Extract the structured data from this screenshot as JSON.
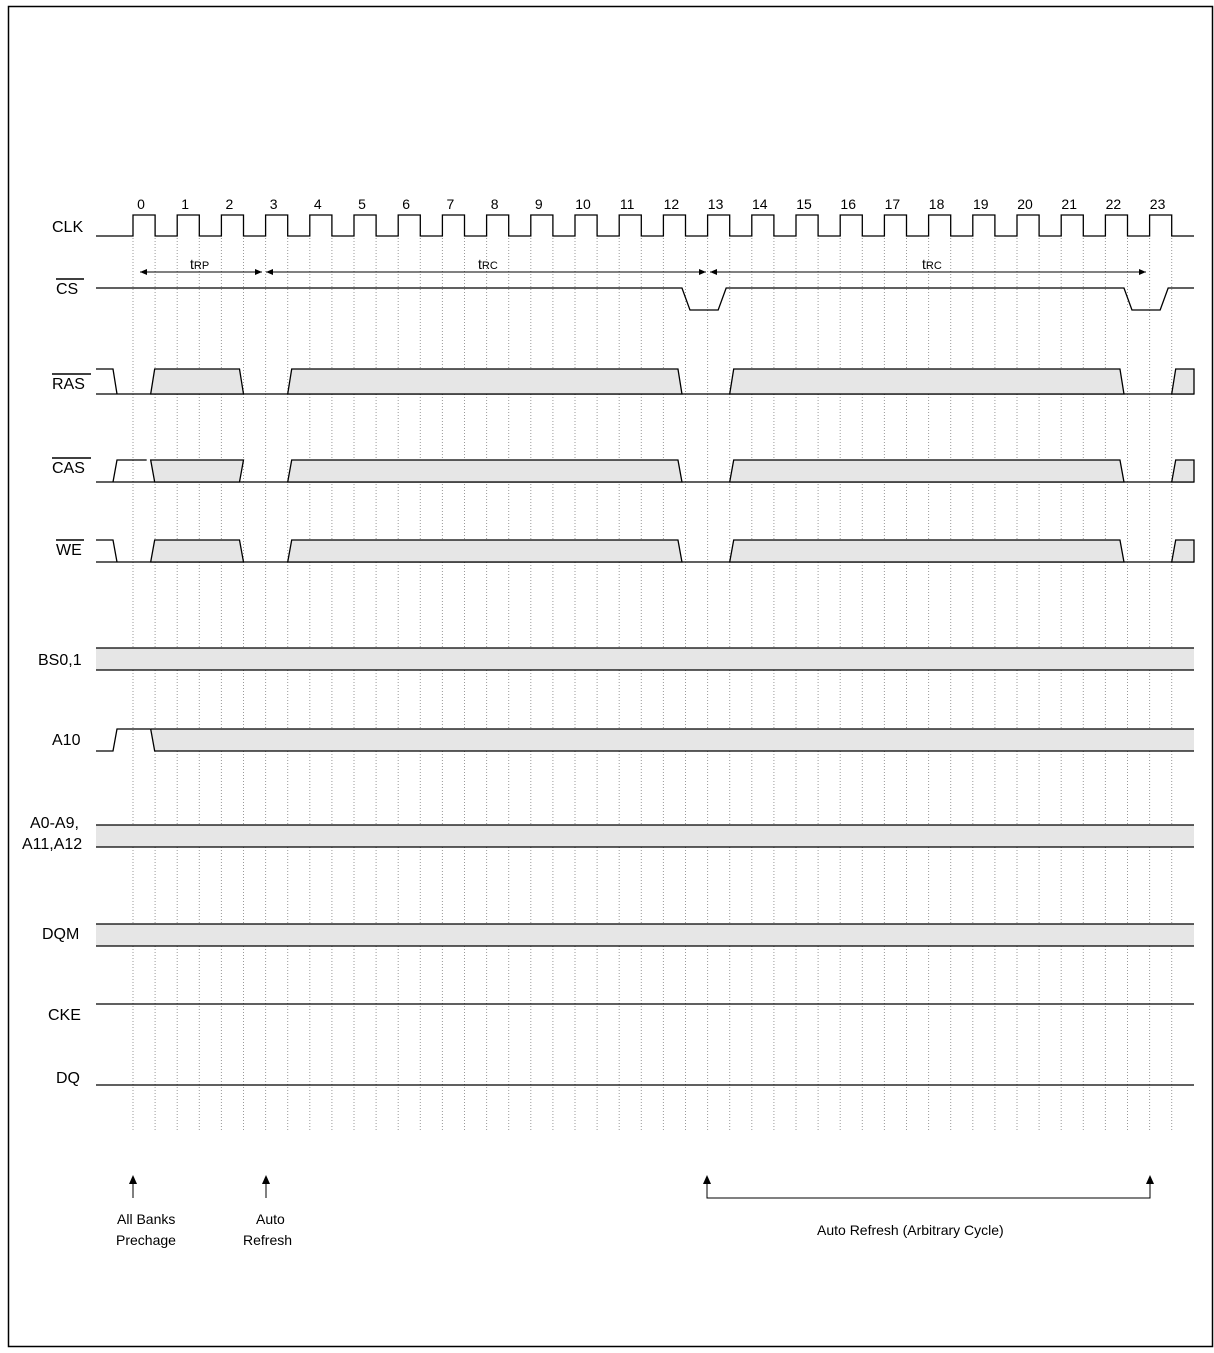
{
  "diagram": {
    "clock_labels": [
      "0",
      "1",
      "2",
      "3",
      "4",
      "5",
      "6",
      "7",
      "8",
      "9",
      "10",
      "11",
      "12",
      "13",
      "14",
      "15",
      "16",
      "17",
      "18",
      "19",
      "20",
      "21",
      "22",
      "23"
    ],
    "signals": {
      "clk": "CLK",
      "cs": "CS",
      "ras": "RAS",
      "cas": "CAS",
      "we": "WE",
      "bs": "BS0,1",
      "a10": "A10",
      "addr_line1": "A0-A9,",
      "addr_line2": "A11,A12",
      "dqm": "DQM",
      "cke": "CKE",
      "dq": "DQ"
    },
    "timing": {
      "trp_t": "t",
      "trp_sub": "RP",
      "trc1_t": "t",
      "trc1_sub": "RC",
      "trc2_t": "t",
      "trc2_sub": "RC"
    },
    "annotations": {
      "precharge_line1": "All Banks",
      "precharge_line2": "Prechage",
      "refresh_line1": "Auto",
      "refresh_line2": "Refresh",
      "arbitrary": "Auto Refresh (Arbitrary Cycle)"
    },
    "colors": {
      "shade": "#e6e6e6",
      "line": "#000000",
      "grid": "#999999"
    }
  }
}
